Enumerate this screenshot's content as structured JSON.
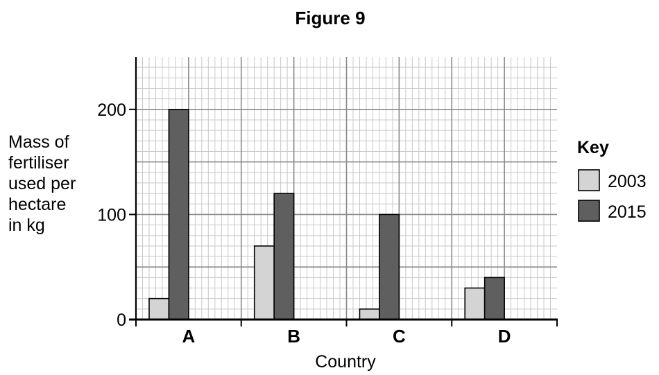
{
  "chart_data": {
    "type": "bar",
    "title": "Figure 9",
    "xlabel": "Country",
    "ylabel_lines": [
      "Mass of",
      "fertiliser",
      "used per",
      "hectare",
      "in kg"
    ],
    "categories": [
      "A",
      "B",
      "C",
      "D"
    ],
    "series": [
      {
        "name": "2003",
        "values": [
          20,
          70,
          10,
          30
        ],
        "color": "#d4d4d4"
      },
      {
        "name": "2015",
        "values": [
          200,
          120,
          100,
          40
        ],
        "color": "#5f5f5f"
      }
    ],
    "ylim": [
      0,
      250
    ],
    "yticks": [
      0,
      100,
      200
    ],
    "grid": true,
    "legend": {
      "title": "Key",
      "position": "right"
    }
  }
}
